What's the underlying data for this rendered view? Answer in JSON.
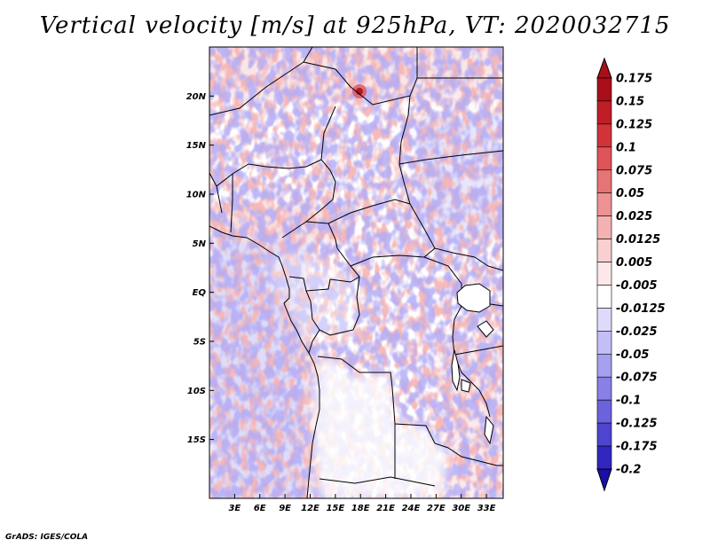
{
  "title": "Vertical velocity [m/s] at 925hPa, VT: 2020032715",
  "credit": "GrADS: IGES/COLA",
  "map": {
    "lon_range": [
      0,
      35
    ],
    "lat_range": [
      -21,
      25
    ],
    "lon_ticks": [
      {
        "value": 3,
        "label": "3E"
      },
      {
        "value": 6,
        "label": "6E"
      },
      {
        "value": 9,
        "label": "9E"
      },
      {
        "value": 12,
        "label": "12E"
      },
      {
        "value": 15,
        "label": "15E"
      },
      {
        "value": 18,
        "label": "18E"
      },
      {
        "value": 21,
        "label": "21E"
      },
      {
        "value": 24,
        "label": "24E"
      },
      {
        "value": 27,
        "label": "27E"
      },
      {
        "value": 30,
        "label": "30E"
      },
      {
        "value": 33,
        "label": "33E"
      }
    ],
    "lat_ticks": [
      {
        "value": 20,
        "label": "20N"
      },
      {
        "value": 15,
        "label": "15N"
      },
      {
        "value": 10,
        "label": "10N"
      },
      {
        "value": 5,
        "label": "5N"
      },
      {
        "value": 0,
        "label": "EQ"
      },
      {
        "value": -5,
        "label": "5S"
      },
      {
        "value": -10,
        "label": "10S"
      },
      {
        "value": -15,
        "label": "15S"
      }
    ]
  },
  "colorbar": {
    "unit": "m/s",
    "levels": [
      {
        "label": "0.175",
        "color": "#a80f1a"
      },
      {
        "label": "0.15",
        "color": "#c01e26"
      },
      {
        "label": "0.125",
        "color": "#d0343a"
      },
      {
        "label": "0.1",
        "color": "#de5458"
      },
      {
        "label": "0.075",
        "color": "#e67375"
      },
      {
        "label": "0.05",
        "color": "#ee9294"
      },
      {
        "label": "0.025",
        "color": "#f4b1b2"
      },
      {
        "label": "0.0125",
        "color": "#f9cfd0"
      },
      {
        "label": "0.005",
        "color": "#fce8e8"
      },
      {
        "label": "-0.005",
        "color": "#ffffff"
      },
      {
        "label": "-0.0125",
        "color": "#dedbfa"
      },
      {
        "label": "-0.025",
        "color": "#c3bef5"
      },
      {
        "label": "-0.05",
        "color": "#a6a0ee"
      },
      {
        "label": "-0.075",
        "color": "#8880e6"
      },
      {
        "label": "-0.1",
        "color": "#6b62dc"
      },
      {
        "label": "-0.125",
        "color": "#4d44cf"
      },
      {
        "label": "-0.175",
        "color": "#3126bf"
      },
      {
        "label": "-0.2",
        "color": "#1a0ea6"
      }
    ],
    "max_color": "#a80f1a",
    "min_color": "#1a0ea6"
  }
}
